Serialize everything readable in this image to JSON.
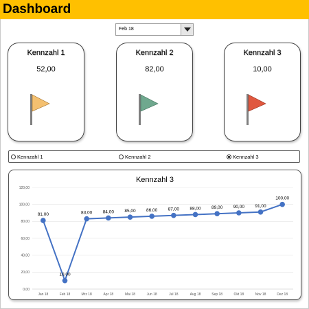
{
  "header": {
    "title": "Dashboard",
    "color": "#ffc000"
  },
  "month_select": {
    "value": "Feb 18",
    "icon": "dropdown-arrow-icon"
  },
  "cards": [
    {
      "title": "Kennzahl  1",
      "value": "52,00",
      "flag_color": "#f4c070",
      "icon": "flag-icon"
    },
    {
      "title": "Kennzahl  2",
      "value": "82,00",
      "flag_color": "#6fa88e",
      "icon": "flag-icon"
    },
    {
      "title": "Kennzahl  3",
      "value": "10,00",
      "flag_color": "#e0583f",
      "icon": "flag-icon"
    }
  ],
  "radio_options": [
    {
      "label": "Kennzahl 1",
      "selected": false
    },
    {
      "label": "Kennzahl 2",
      "selected": false
    },
    {
      "label": "Kennzahl 3",
      "selected": true
    }
  ],
  "chart_data": {
    "type": "line",
    "title": "Kennzahl  3",
    "categories": [
      "Jan 18",
      "Feb 18",
      "Mrz 18",
      "Apr 18",
      "Mai 18",
      "Jun 18",
      "Jul 18",
      "Aug 18",
      "Sep 18",
      "Okt 18",
      "Nov 18",
      "Dez 18"
    ],
    "values": [
      81,
      10,
      83,
      84,
      85,
      86,
      87,
      88,
      89,
      90,
      91,
      100
    ],
    "value_labels": [
      "81,00",
      "10,00",
      "83,00",
      "84,00",
      "85,00",
      "86,00",
      "87,00",
      "88,00",
      "89,00",
      "90,00",
      "91,00",
      "100,00"
    ],
    "yticks": [
      0,
      20,
      40,
      60,
      80,
      100,
      120
    ],
    "ytick_labels": [
      "0,00",
      "20,00",
      "40,00",
      "60,00",
      "80,00",
      "100,00",
      "120,00"
    ],
    "ylim": [
      0,
      120
    ],
    "grid": true,
    "line_color": "#4472c4"
  }
}
